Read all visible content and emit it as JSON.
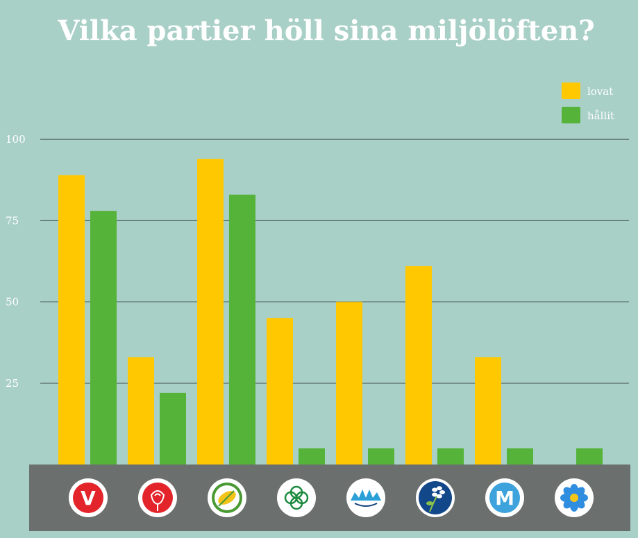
{
  "chart_data": {
    "type": "bar",
    "title": "Vilka partier höll sina miljölöften?",
    "xlabel": "",
    "ylabel": "",
    "ylim": [
      0,
      100
    ],
    "yticks": [
      "100",
      "75",
      "50",
      "25"
    ],
    "ytick_values": [
      100,
      75,
      50,
      25
    ],
    "grid": true,
    "legend_position": "top-right",
    "categories": [
      "V",
      "S",
      "MP",
      "C",
      "L",
      "KD",
      "M",
      "SD"
    ],
    "series": [
      {
        "name": "lovat",
        "color": "#ffc800",
        "values": [
          89,
          33,
          94,
          45,
          50,
          61,
          33,
          0
        ]
      },
      {
        "name": "hållit",
        "color": "#56b33a",
        "values": [
          78,
          22,
          83,
          5,
          5,
          5,
          5,
          5
        ]
      }
    ],
    "logos": [
      {
        "icon": "vansterpartiet-logo-icon",
        "color": "#e3242b",
        "letter": "V"
      },
      {
        "icon": "socialdemokraterna-rose-logo-icon",
        "color": "#e3242b"
      },
      {
        "icon": "miljopartiet-dandelion-logo-icon",
        "color": "#4a9a34"
      },
      {
        "icon": "centerpartiet-clover-logo-icon",
        "color": "#1c8a3e"
      },
      {
        "icon": "liberalerna-cornflower-logo-icon",
        "color": "#2b9fd8"
      },
      {
        "icon": "kristdemokraterna-anemone-logo-icon",
        "color": "#12478a"
      },
      {
        "icon": "moderaterna-logo-icon",
        "color": "#3ea3dc",
        "letter": "M"
      },
      {
        "icon": "sverigedemokraterna-flower-logo-icon",
        "color": "#2f8ee0"
      }
    ]
  }
}
